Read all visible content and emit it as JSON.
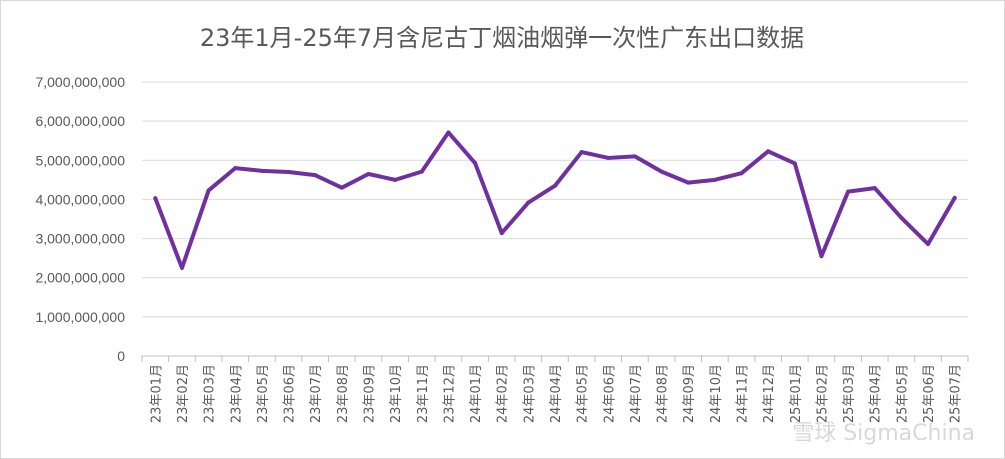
{
  "chart_data": {
    "type": "line",
    "title": "23年1月-25年7月含尼古丁烟油烟弹一次性广东出口数据",
    "xlabel": "",
    "ylabel": "",
    "ylim": [
      0,
      7000000000
    ],
    "y_ticks": [
      {
        "value": 0,
        "label": "0"
      },
      {
        "value": 1000000000,
        "label": "1,000,000,000"
      },
      {
        "value": 2000000000,
        "label": "2,000,000,000"
      },
      {
        "value": 3000000000,
        "label": "3,000,000,000"
      },
      {
        "value": 4000000000,
        "label": "4,000,000,000"
      },
      {
        "value": 5000000000,
        "label": "5,000,000,000"
      },
      {
        "value": 6000000000,
        "label": "6,000,000,000"
      },
      {
        "value": 7000000000,
        "label": "7,000,000,000"
      }
    ],
    "grid": "horizontal",
    "legend": "none",
    "line_color": "#7030a0",
    "categories": [
      "23年01月",
      "23年02月",
      "23年03月",
      "23年04月",
      "23年05月",
      "23年06月",
      "23年07月",
      "23年08月",
      "23年09月",
      "23年10月",
      "23年11月",
      "23年12月",
      "24年01月",
      "24年02月",
      "24年03月",
      "24年04月",
      "24年05月",
      "24年06月",
      "24年07月",
      "24年08月",
      "24年09月",
      "24年10月",
      "24年11月",
      "24年12月",
      "25年01月",
      "25年02月",
      "25年03月",
      "25年04月",
      "25年05月",
      "25年06月",
      "25年07月"
    ],
    "series": [
      {
        "values": [
          4030000000,
          2250000000,
          4230000000,
          4800000000,
          4730000000,
          4700000000,
          4620000000,
          4300000000,
          4650000000,
          4500000000,
          4710000000,
          5710000000,
          4930000000,
          3140000000,
          3920000000,
          4350000000,
          5210000000,
          5060000000,
          5100000000,
          4710000000,
          4430000000,
          4500000000,
          4670000000,
          5230000000,
          4920000000,
          2550000000,
          4200000000,
          4290000000,
          3530000000,
          2860000000,
          4040000000
        ]
      }
    ],
    "watermark": "雪球 SigmaChina"
  }
}
